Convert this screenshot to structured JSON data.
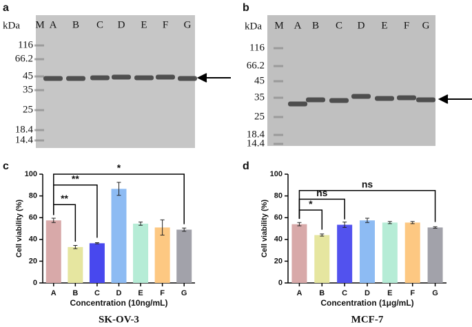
{
  "gels": [
    {
      "panel": "a",
      "unit": "kDa",
      "lanes": [
        "M",
        "A",
        "B",
        "C",
        "D",
        "E",
        "F",
        "G"
      ],
      "markers": [
        "116",
        "66.2",
        "45",
        "35",
        "25",
        "18.4",
        "14.4"
      ]
    },
    {
      "panel": "b",
      "unit": "kDa",
      "lanes": [
        "M",
        "A",
        "B",
        "C",
        "D",
        "E",
        "F",
        "G"
      ],
      "markers": [
        "116",
        "66.2",
        "45",
        "35",
        "25",
        "18.4",
        "14.4"
      ]
    }
  ],
  "chart_data": [
    {
      "type": "bar",
      "panel": "c",
      "ylabel": "Cell viability (%)",
      "xlabel": "Concentration (10ng/mL)",
      "subtitle": "SK-OV-3",
      "categories": [
        "A",
        "B",
        "C",
        "D",
        "E",
        "F",
        "G"
      ],
      "values": [
        57.5,
        33,
        36.5,
        86.5,
        54.5,
        51,
        49
      ],
      "errors": [
        2,
        1.5,
        0.5,
        6,
        1.5,
        7,
        1.5
      ],
      "colors": [
        "#d8a9a9",
        "#e6e6a0",
        "#4848ee",
        "#8dbbf3",
        "#b6ecd6",
        "#fdc882",
        "#a2a2aa"
      ],
      "ylim": [
        0,
        100
      ],
      "yticks": [
        0,
        20,
        40,
        60,
        80,
        100
      ],
      "annotations": [
        "**",
        "**",
        "*"
      ]
    },
    {
      "type": "bar",
      "panel": "d",
      "ylabel": "Cell viability (%)",
      "xlabel": "Concentration (1μg/mL)",
      "subtitle": "MCF-7",
      "categories": [
        "A",
        "B",
        "C",
        "D",
        "E",
        "F",
        "G"
      ],
      "values": [
        54,
        44,
        53.5,
        57.5,
        55.5,
        55.5,
        51
      ],
      "errors": [
        1.5,
        1,
        2.5,
        2,
        1,
        1,
        0.7
      ],
      "colors": [
        "#d8a9a9",
        "#e6e6a0",
        "#5252ee",
        "#8dbbf3",
        "#b6ecd6",
        "#fdc882",
        "#a2a2aa"
      ],
      "ylim": [
        0,
        100
      ],
      "yticks": [
        0,
        20,
        40,
        60,
        80,
        100
      ],
      "annotations": [
        "*",
        "ns",
        "ns"
      ]
    }
  ]
}
